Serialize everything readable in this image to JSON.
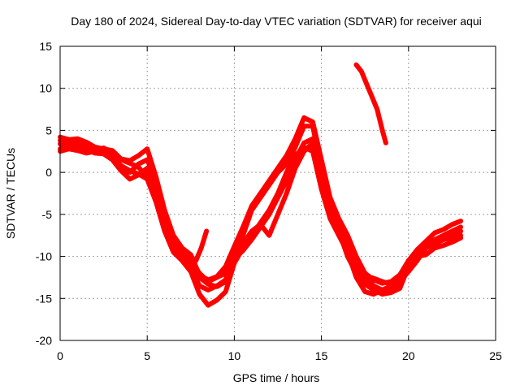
{
  "chart_data": {
    "type": "line",
    "title": "Day 180 of 2024, Sidereal Day-to-day VTEC variation (SDTVAR) for receiver aqui",
    "xlabel": "GPS time / hours",
    "ylabel": "SDTVAR / TECUs",
    "xlim": [
      0,
      25
    ],
    "ylim": [
      -20,
      15
    ],
    "xticks": [
      0,
      5,
      10,
      15,
      20,
      25
    ],
    "yticks": [
      -20,
      -15,
      -10,
      -5,
      0,
      5,
      10,
      15
    ],
    "xtick_labels": [
      "0",
      "5",
      "10",
      "15",
      "20",
      "25"
    ],
    "ytick_labels": [
      "-20",
      "-15",
      "-10",
      "-5",
      "0",
      "5",
      "10",
      "15"
    ],
    "grid": true,
    "series_color": "#ff0000",
    "series": [
      {
        "name": "track-1",
        "x": [
          0,
          0.5,
          1,
          1.5,
          2,
          2.5,
          3,
          3.5,
          4,
          4.5,
          5,
          5.5,
          6,
          6.5,
          7,
          7.5,
          8,
          8.5,
          9,
          9.5,
          10,
          10.5,
          11,
          11.5,
          12,
          12.5,
          13,
          13.5,
          14,
          14.5,
          15,
          15.5,
          16,
          16.5,
          17,
          17.5,
          18,
          18.5,
          19,
          19.5,
          20,
          20.5,
          21,
          21.5,
          22,
          22.5,
          23
        ],
        "y": [
          2.8,
          3.2,
          3.4,
          3.0,
          2.6,
          2.9,
          2.3,
          1.5,
          1.1,
          0.6,
          -0.5,
          -3.0,
          -6.5,
          -9.0,
          -10.3,
          -11.5,
          -12.5,
          -13.3,
          -13.6,
          -13.0,
          -10.3,
          -9.3,
          -8.0,
          -6.5,
          -5.0,
          -3.0,
          -1.0,
          1.5,
          3.5,
          4.0,
          -1.0,
          -4.5,
          -6.0,
          -8.5,
          -11.0,
          -12.3,
          -12.6,
          -13.0,
          -13.3,
          -13.0,
          -11.8,
          -10.5,
          -9.0,
          -8.5,
          -8.0,
          -7.5,
          -7.0
        ]
      },
      {
        "name": "track-2",
        "x": [
          0,
          0.5,
          1,
          1.5,
          2,
          2.5,
          3,
          3.5,
          4,
          4.5,
          5,
          5.5,
          6,
          6.5,
          7,
          7.5,
          8,
          8.5,
          9,
          9.5,
          10,
          10.5,
          11,
          11.5,
          12,
          12.5,
          13,
          13.5,
          14,
          14.5,
          15,
          15.5,
          16,
          16.5,
          17,
          17.5,
          18,
          18.5,
          19,
          19.5,
          20,
          20.5,
          21,
          21.5,
          22,
          22.5,
          23
        ],
        "y": [
          3.8,
          3.5,
          3.7,
          3.2,
          2.8,
          2.5,
          2.0,
          0.5,
          0.0,
          1.0,
          1.5,
          -1.0,
          -5.0,
          -8.5,
          -9.5,
          -10.5,
          -12.0,
          -13.0,
          -12.5,
          -12.0,
          -9.5,
          -7.5,
          -4.5,
          -3.0,
          -1.5,
          0.0,
          1.0,
          3.0,
          5.5,
          5.5,
          0.5,
          -3.5,
          -6.0,
          -9.0,
          -11.5,
          -12.5,
          -13.5,
          -14.0,
          -13.5,
          -12.5,
          -11.0,
          -9.5,
          -8.5,
          -8.0,
          -7.5,
          -7.0,
          -6.5
        ]
      },
      {
        "name": "track-3",
        "x": [
          0,
          0.5,
          1,
          1.5,
          2,
          2.5,
          3,
          3.5,
          4,
          4.5,
          5,
          5.5,
          6,
          6.5,
          7,
          7.5,
          8,
          8.5,
          9,
          9.5,
          10,
          10.5,
          11,
          11.5,
          12,
          12.5,
          13,
          13.5,
          14,
          14.5,
          15,
          15.5,
          16,
          16.5,
          17,
          17.5,
          18,
          18.5,
          19,
          19.5,
          20,
          20.5,
          21,
          21.5,
          22,
          22.5,
          23
        ],
        "y": [
          2.5,
          2.8,
          2.6,
          2.3,
          2.5,
          2.2,
          1.5,
          0.2,
          -0.8,
          -0.3,
          0.5,
          -2.0,
          -6.0,
          -9.2,
          -10.2,
          -11.2,
          -13.5,
          -14.0,
          -13.5,
          -12.8,
          -9.8,
          -8.5,
          -7.0,
          -6.2,
          -7.5,
          -5.0,
          -2.5,
          0.5,
          2.5,
          3.5,
          -1.5,
          -5.0,
          -7.0,
          -10.0,
          -12.0,
          -13.3,
          -14.0,
          -14.5,
          -14.3,
          -13.8,
          -11.2,
          -10.0,
          -9.8,
          -9.0,
          -8.7,
          -8.3,
          -7.8
        ]
      },
      {
        "name": "track-4",
        "x": [
          0,
          0.5,
          1,
          1.5,
          2,
          2.5,
          3,
          3.5,
          4,
          4.5,
          5,
          5.5,
          6,
          6.5,
          7,
          7.5,
          8,
          8.5,
          9,
          9.5,
          10,
          10.5,
          11,
          11.5,
          12,
          12.5,
          13,
          13.5,
          14,
          14.5,
          15,
          15.5,
          16,
          16.5,
          17,
          17.5,
          18,
          18.5,
          19,
          19.5,
          20,
          20.5,
          21,
          21.5,
          22,
          22.5,
          23
        ],
        "y": [
          4.2,
          3.9,
          4.0,
          3.6,
          3.0,
          2.8,
          2.6,
          1.6,
          1.4,
          2.0,
          2.8,
          -0.5,
          -4.5,
          -7.5,
          -9.0,
          -9.8,
          -12.2,
          -12.8,
          -12.4,
          -11.2,
          -8.8,
          -6.5,
          -4.0,
          -2.5,
          -1.0,
          0.5,
          2.0,
          4.0,
          6.5,
          6.0,
          1.5,
          -3.0,
          -5.5,
          -7.5,
          -10.0,
          -12.0,
          -12.8,
          -13.2,
          -13.0,
          -12.2,
          -10.5,
          -9.2,
          -8.2,
          -7.2,
          -6.8,
          -6.2,
          -5.8
        ]
      },
      {
        "name": "track-5",
        "x": [
          0,
          0.5,
          1,
          1.5,
          2,
          2.5,
          3,
          3.5,
          4,
          4.5,
          5,
          5.5,
          6,
          6.5,
          7,
          7.5,
          8,
          8.5,
          9,
          9.5,
          10,
          10.5,
          11,
          11.5,
          12,
          12.5,
          13,
          13.5,
          14,
          14.5,
          15,
          15.5,
          16,
          16.5,
          17,
          17.5,
          18,
          18.5,
          19,
          19.5,
          20,
          20.5,
          21,
          21.5,
          22,
          22.5,
          23
        ],
        "y": [
          3.4,
          3.1,
          3.0,
          2.7,
          2.3,
          2.2,
          1.8,
          0.8,
          0.2,
          -0.2,
          -0.8,
          -3.5,
          -7.0,
          -9.5,
          -10.5,
          -11.8,
          -14.5,
          -15.8,
          -15.2,
          -14.2,
          -10.8,
          -9.0,
          -7.5,
          -6.0,
          -4.5,
          -2.5,
          0.0,
          2.0,
          3.0,
          2.5,
          -2.0,
          -5.5,
          -7.5,
          -9.5,
          -12.5,
          -14.2,
          -14.5,
          -14.0,
          -13.8,
          -13.2,
          -10.5,
          -9.5,
          -8.8,
          -8.5,
          -8.0,
          -7.8,
          -7.5
        ]
      },
      {
        "name": "track-6",
        "x": [
          17,
          17.3,
          17.6,
          17.9,
          18.2,
          18.5,
          18.7
        ],
        "y": [
          12.8,
          12.0,
          10.5,
          9.0,
          7.5,
          5.0,
          3.5
        ]
      },
      {
        "name": "track-7",
        "x": [
          7.8,
          8.1,
          8.4
        ],
        "y": [
          -10.5,
          -9.0,
          -7.0
        ]
      }
    ]
  }
}
